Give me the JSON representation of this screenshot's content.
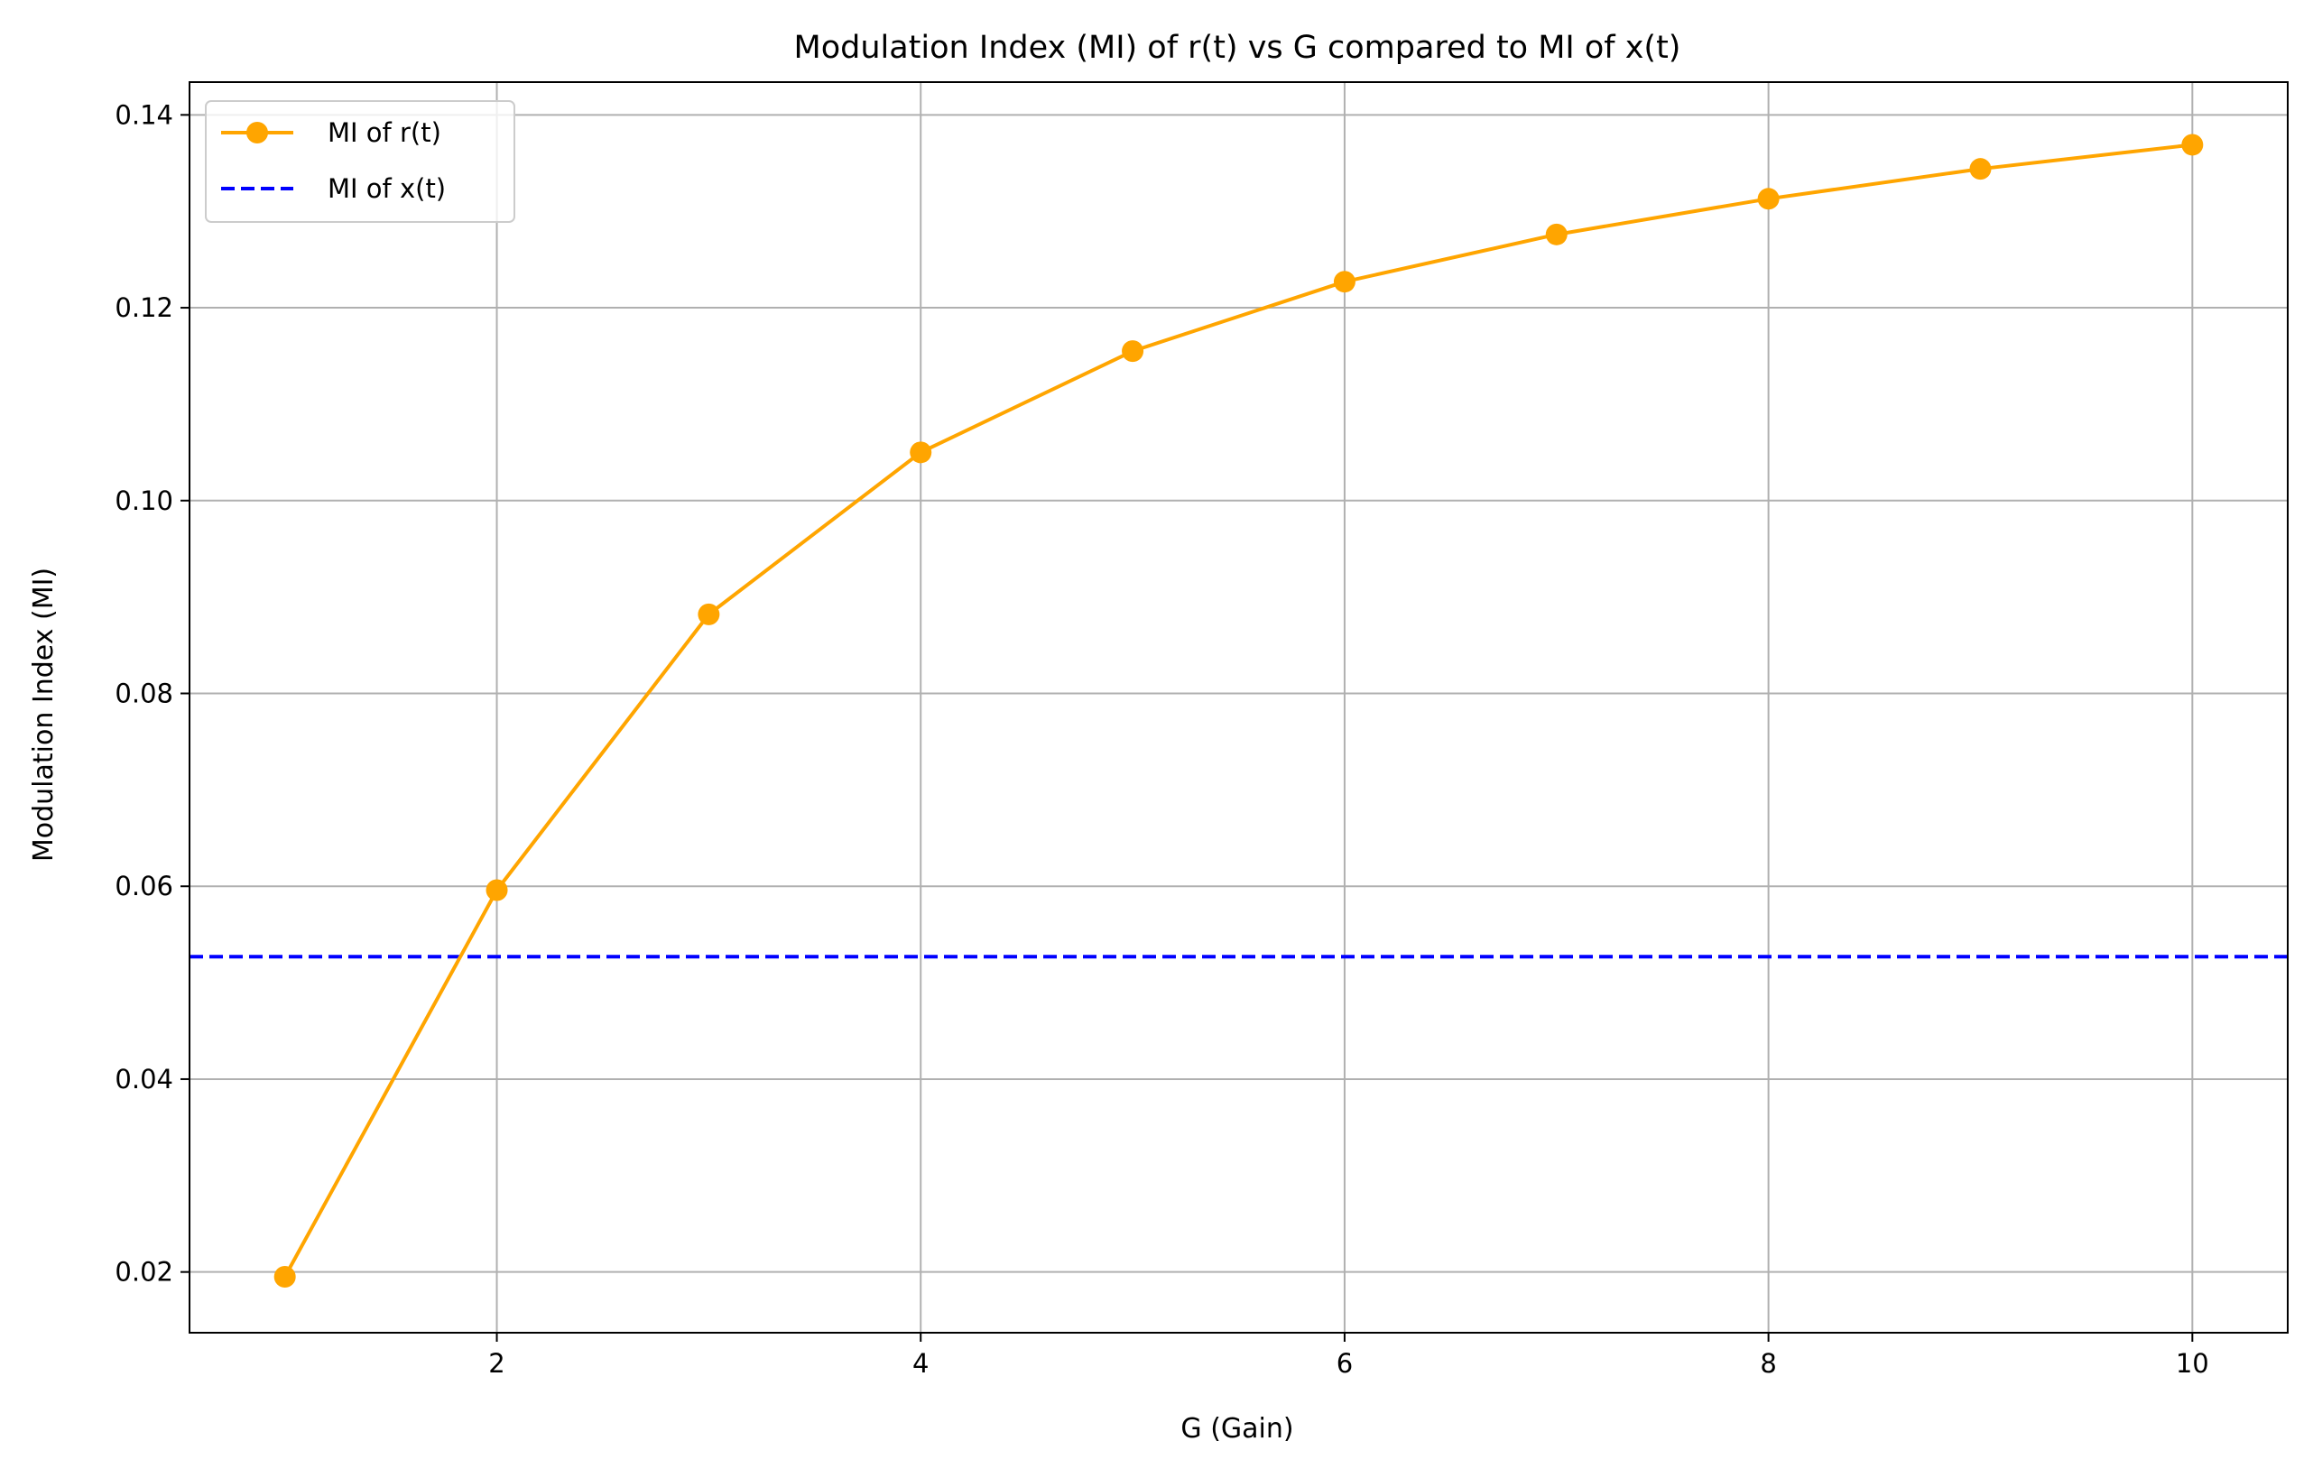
{
  "chart_data": {
    "type": "line",
    "title": "Modulation Index (MI) of r(t) vs G compared to MI of x(t)",
    "xlabel": "G (Gain)",
    "ylabel": "Modulation Index (MI)",
    "xlim": [
      0.55,
      10.45
    ],
    "ylim": [
      0.0137,
      0.1434
    ],
    "xticks": [
      2,
      4,
      6,
      8,
      10
    ],
    "yticks": [
      0.02,
      0.04,
      0.06,
      0.08,
      0.1,
      0.12,
      0.14
    ],
    "xtick_labels": [
      "2",
      "4",
      "6",
      "8",
      "10"
    ],
    "ytick_labels": [
      "0.02",
      "0.04",
      "0.06",
      "0.08",
      "0.10",
      "0.12",
      "0.14"
    ],
    "grid": true,
    "legend_position": "top-left",
    "series": [
      {
        "name": "MI of r(t)",
        "kind": "line-with-markers",
        "color": "#ffa500",
        "x": [
          1,
          2,
          3,
          4,
          5,
          6,
          7,
          8,
          9,
          10
        ],
        "y": [
          0.0195,
          0.0596,
          0.0882,
          0.105,
          0.1155,
          0.1227,
          0.1276,
          0.1313,
          0.1344,
          0.1369
        ]
      },
      {
        "name": "MI of x(t)",
        "kind": "horizontal-dashed-line",
        "color": "#0000ff",
        "y": 0.0527
      }
    ]
  }
}
